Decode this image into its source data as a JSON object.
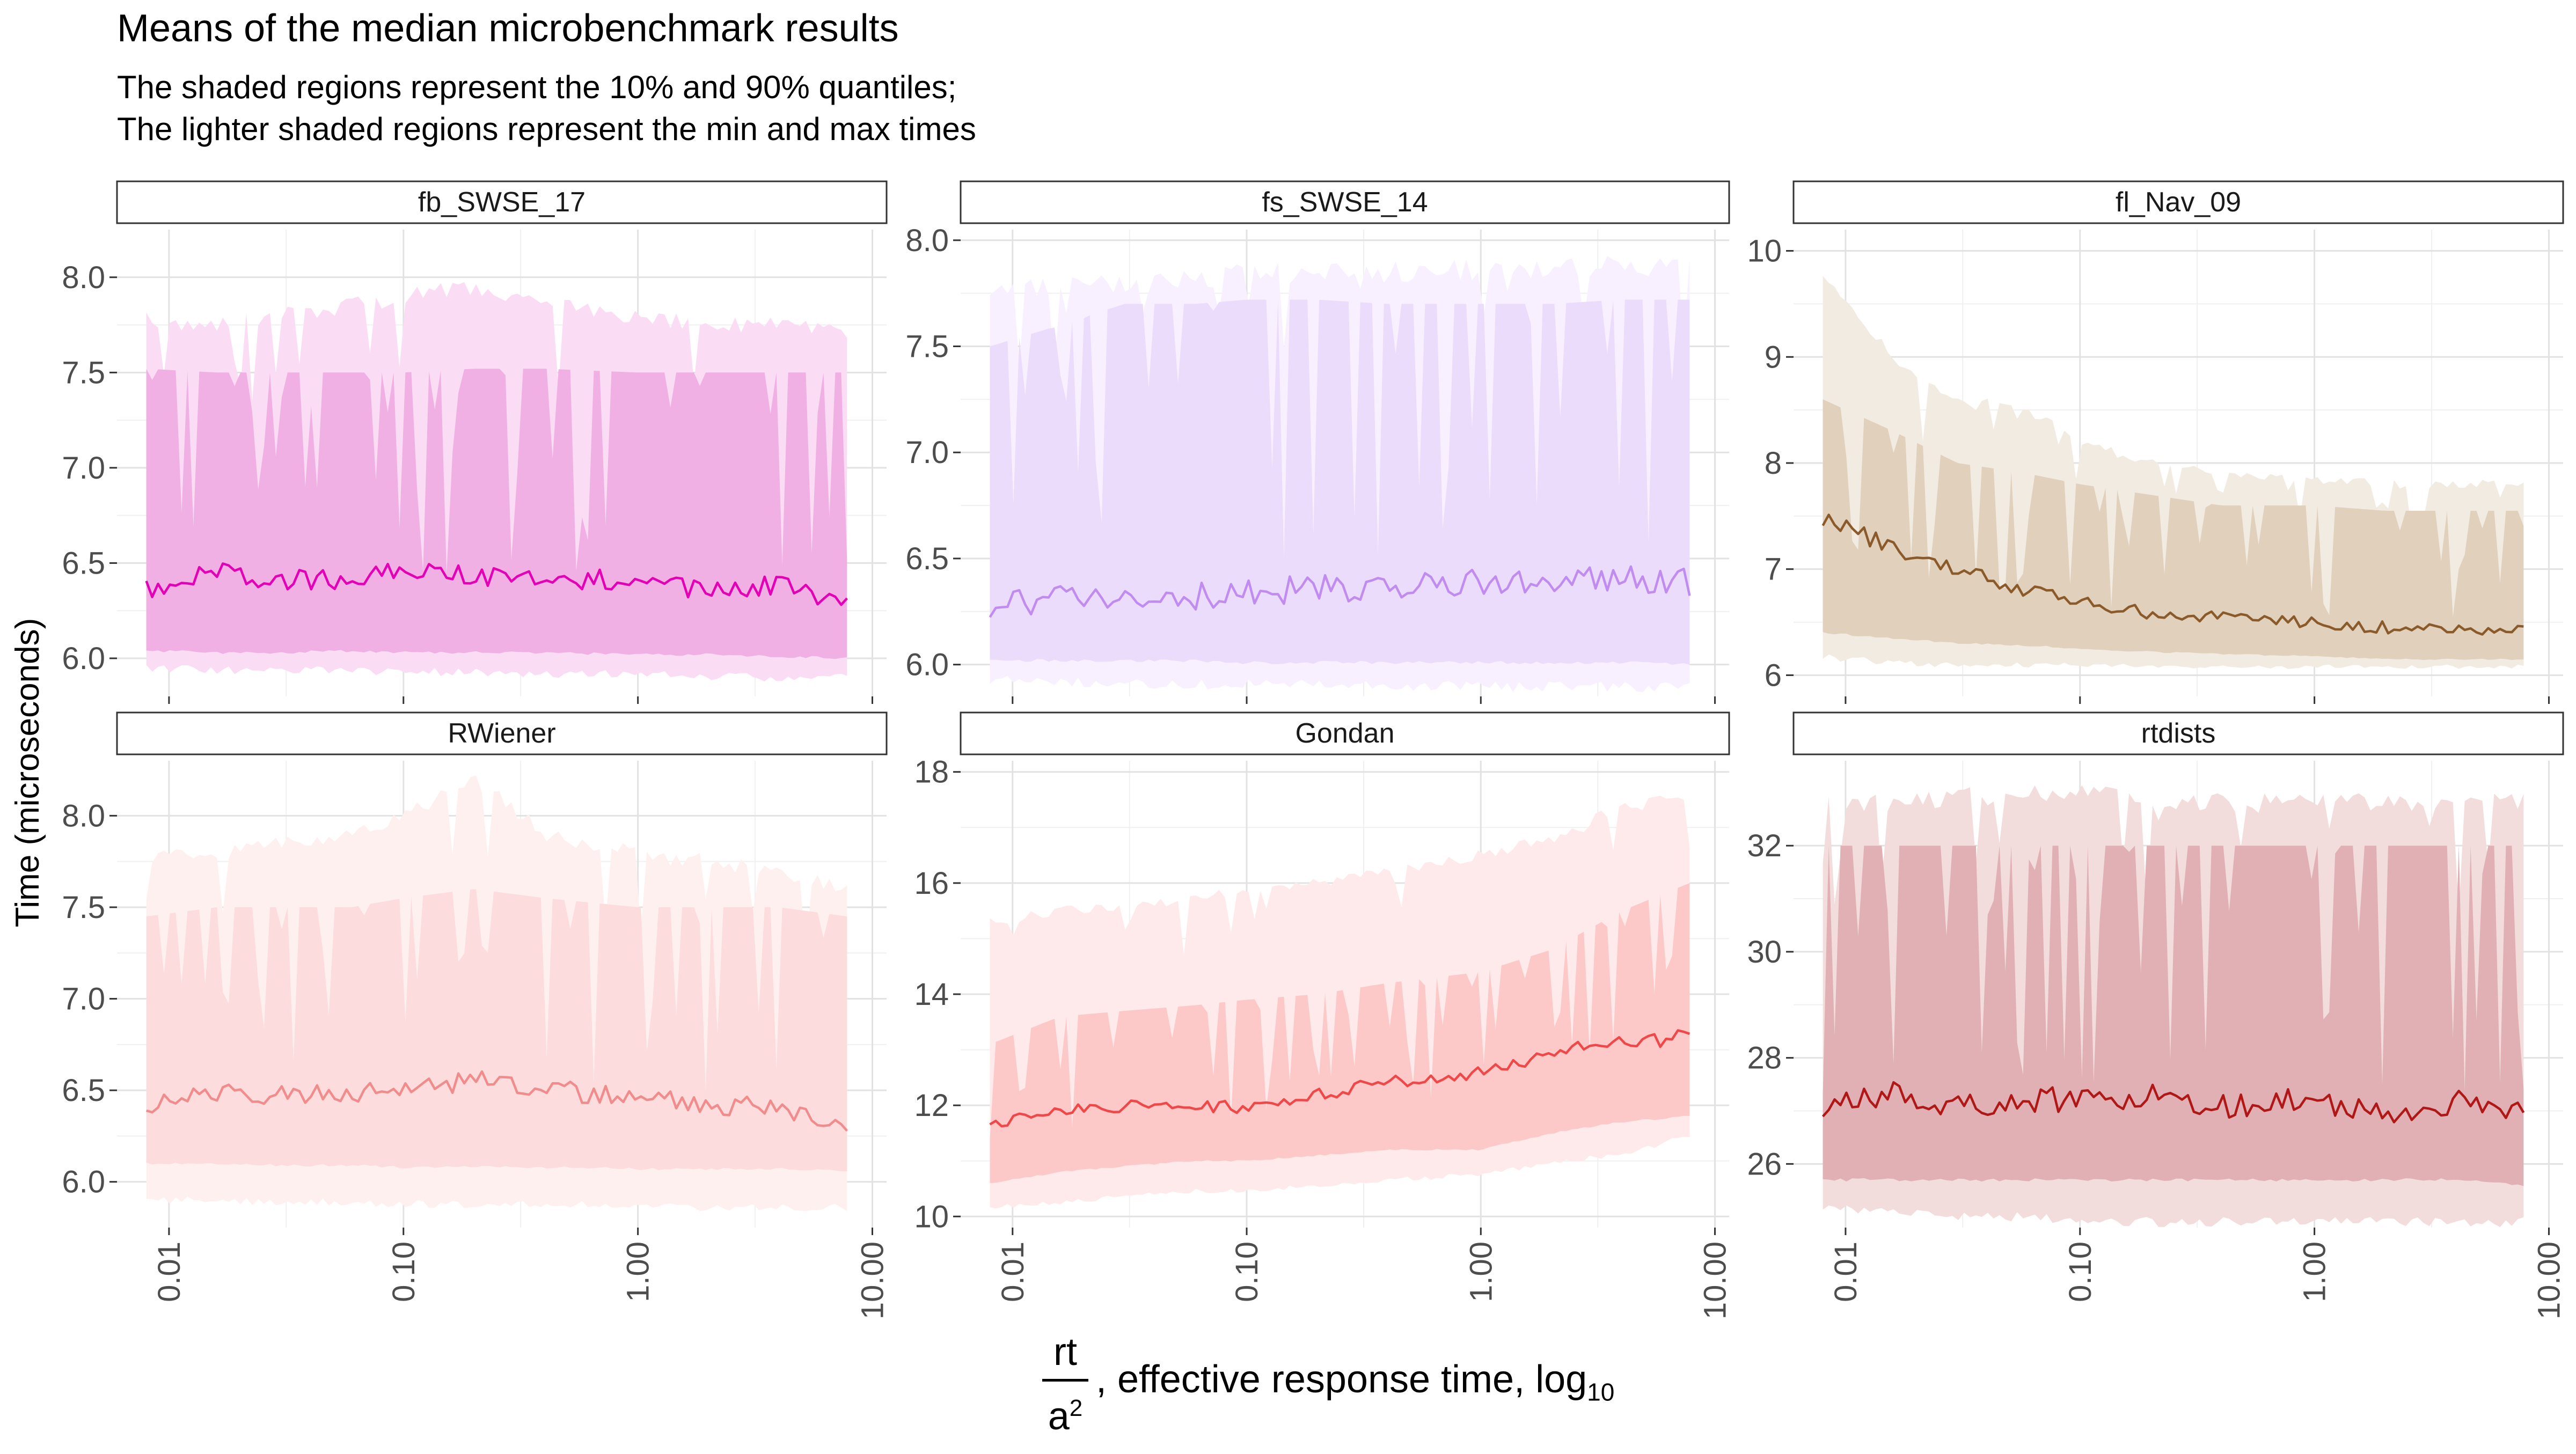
{
  "title": "Means of the median microbenchmark results",
  "subtitle_lines": [
    "The shaded regions represent the 10% and 90% quantiles;",
    "The lighter shaded regions represent the min and max times"
  ],
  "y_axis_label": "Time (microseconds)",
  "x_axis_label": {
    "numerator": "rt",
    "denominator": "a",
    "denominator_exponent": "2",
    "rest": ", effective response time,  log",
    "subscript": "10"
  },
  "chart_data": [
    {
      "type": "area",
      "panel": "fb_SWSE_17",
      "color": "#e400b4",
      "band_color": "#f0b0e4",
      "outer_color": "#fadcf4",
      "x_scale": "log10",
      "x_ticks": [
        "0.01",
        "0.10",
        "1.00",
        "10.00"
      ],
      "y_ticks": [
        "6.0",
        "6.5",
        "7.0",
        "7.5",
        "8.0"
      ],
      "ylim": [
        5.8,
        8.25
      ],
      "x": [
        0.008,
        0.016,
        0.03,
        0.06,
        0.1,
        0.2,
        0.4,
        1.0,
        2.0,
        4.0,
        7.8
      ],
      "mean": [
        6.36,
        6.47,
        6.4,
        6.42,
        6.45,
        6.44,
        6.42,
        6.4,
        6.36,
        6.38,
        6.28
      ],
      "q10": [
        6.04,
        6.03,
        6.03,
        6.04,
        6.03,
        6.03,
        6.03,
        6.02,
        6.02,
        6.01,
        6.0
      ],
      "q90": [
        7.52,
        7.5,
        7.5,
        7.5,
        7.5,
        7.52,
        7.52,
        7.5,
        7.5,
        7.5,
        7.5
      ],
      "min": [
        5.97,
        5.96,
        5.96,
        5.96,
        5.95,
        5.95,
        5.94,
        5.94,
        5.93,
        5.92,
        5.92
      ],
      "max": [
        7.78,
        7.75,
        7.8,
        7.85,
        7.9,
        7.95,
        7.85,
        7.8,
        7.75,
        7.75,
        7.72
      ]
    },
    {
      "type": "area",
      "panel": "fs_SWSE_14",
      "color": "#c08cf0",
      "band_color": "#ecdcfc",
      "outer_color": "#f8f0fe",
      "x_scale": "log10",
      "x_ticks": [
        "0.01",
        "0.10",
        "1.00",
        "10.00"
      ],
      "y_ticks": [
        "6.0",
        "6.5",
        "7.0",
        "7.5",
        "8.0"
      ],
      "ylim": [
        5.85,
        8.05
      ],
      "x": [
        0.008,
        0.016,
        0.03,
        0.06,
        0.1,
        0.2,
        0.4,
        1.0,
        2.0,
        4.0,
        7.8
      ],
      "mean": [
        6.28,
        6.31,
        6.3,
        6.32,
        6.33,
        6.36,
        6.37,
        6.38,
        6.4,
        6.42,
        6.38
      ],
      "q10": [
        6.02,
        6.02,
        6.02,
        6.02,
        6.01,
        6.01,
        6.01,
        6.01,
        6.01,
        6.01,
        6.0
      ],
      "q90": [
        7.5,
        7.6,
        7.7,
        7.7,
        7.72,
        7.72,
        7.7,
        7.7,
        7.7,
        7.72,
        7.72
      ],
      "min": [
        5.95,
        5.94,
        5.94,
        5.93,
        5.93,
        5.93,
        5.93,
        5.92,
        5.92,
        5.92,
        5.92
      ],
      "max": [
        7.78,
        7.78,
        7.8,
        7.82,
        7.84,
        7.85,
        7.85,
        7.86,
        7.87,
        7.88,
        7.88
      ]
    },
    {
      "type": "area",
      "panel": "fl_Nav_09",
      "color": "#8b5a2b",
      "band_color": "#e0d0bc",
      "outer_color": "#f2ebe2",
      "x_scale": "log10",
      "x_ticks": [
        "0.01",
        "0.10",
        "1.00",
        "10.00"
      ],
      "y_ticks": [
        "6",
        "7",
        "8",
        "9",
        "10"
      ],
      "ylim": [
        5.8,
        10.2
      ],
      "x": [
        0.008,
        0.016,
        0.03,
        0.06,
        0.1,
        0.2,
        0.4,
        1.0,
        2.0,
        4.0,
        7.8
      ],
      "mean": [
        7.47,
        7.2,
        7.0,
        6.8,
        6.7,
        6.58,
        6.55,
        6.5,
        6.45,
        6.45,
        6.42
      ],
      "q10": [
        6.4,
        6.35,
        6.3,
        6.28,
        6.25,
        6.22,
        6.2,
        6.18,
        6.15,
        6.15,
        6.15
      ],
      "q90": [
        8.6,
        8.3,
        8.0,
        7.9,
        7.8,
        7.7,
        7.6,
        7.6,
        7.55,
        7.55,
        7.55
      ],
      "min": [
        6.2,
        6.15,
        6.12,
        6.12,
        6.12,
        6.1,
        6.1,
        6.1,
        6.1,
        6.1,
        6.1
      ],
      "max": [
        9.8,
        9.0,
        8.6,
        8.5,
        8.2,
        8.0,
        7.9,
        7.85,
        7.8,
        7.8,
        7.8
      ]
    },
    {
      "type": "area",
      "panel": "RWiener",
      "color": "#f08c8c",
      "band_color": "#fcdcdc",
      "outer_color": "#fff0f0",
      "x_scale": "log10",
      "x_ticks": [
        "0.01",
        "0.10",
        "1.00",
        "10.00"
      ],
      "y_ticks": [
        "6.0",
        "6.5",
        "7.0",
        "7.5",
        "8.0"
      ],
      "ylim": [
        5.75,
        8.3
      ],
      "x": [
        0.008,
        0.016,
        0.03,
        0.06,
        0.1,
        0.2,
        0.4,
        1.0,
        2.0,
        4.0,
        7.8
      ],
      "mean": [
        6.42,
        6.48,
        6.47,
        6.48,
        6.5,
        6.56,
        6.5,
        6.47,
        6.42,
        6.4,
        6.3
      ],
      "q10": [
        6.1,
        6.1,
        6.09,
        6.09,
        6.08,
        6.08,
        6.08,
        6.07,
        6.07,
        6.07,
        6.06
      ],
      "q90": [
        7.45,
        7.5,
        7.5,
        7.5,
        7.55,
        7.6,
        7.55,
        7.5,
        7.5,
        7.5,
        7.45
      ],
      "min": [
        5.92,
        5.92,
        5.91,
        5.91,
        5.9,
        5.9,
        5.9,
        5.89,
        5.88,
        5.88,
        5.88
      ],
      "max": [
        7.78,
        7.78,
        7.85,
        7.9,
        8.0,
        8.2,
        7.9,
        7.8,
        7.75,
        7.7,
        7.6
      ]
    },
    {
      "type": "area",
      "panel": "Gondan",
      "color": "#f04848",
      "band_color": "#fcc8c8",
      "outer_color": "#feeaea",
      "x_scale": "log10",
      "x_ticks": [
        "0.01",
        "0.10",
        "1.00",
        "10.00"
      ],
      "y_ticks": [
        "10",
        "12",
        "14",
        "16",
        "18"
      ],
      "ylim": [
        9.8,
        18.2
      ],
      "x": [
        0.008,
        0.016,
        0.03,
        0.06,
        0.1,
        0.2,
        0.4,
        1.0,
        2.0,
        4.0,
        7.8
      ],
      "mean": [
        11.65,
        11.9,
        12.0,
        12.0,
        11.95,
        12.2,
        12.4,
        12.6,
        12.9,
        13.2,
        13.2
      ],
      "q10": [
        10.6,
        10.8,
        10.9,
        11.0,
        11.0,
        11.1,
        11.2,
        11.2,
        11.5,
        11.7,
        11.8
      ],
      "q90": [
        13.1,
        13.6,
        13.7,
        13.8,
        13.9,
        14.0,
        14.2,
        14.4,
        14.8,
        15.5,
        16.0
      ],
      "min": [
        10.2,
        10.3,
        10.4,
        10.5,
        10.5,
        10.6,
        10.7,
        10.8,
        11.0,
        11.2,
        11.5
      ],
      "max": [
        15.3,
        15.5,
        15.6,
        15.7,
        15.9,
        16.0,
        16.2,
        16.5,
        16.8,
        17.4,
        17.5
      ]
    },
    {
      "type": "area",
      "panel": "rtdists",
      "color": "#b01818",
      "band_color": "#e0b0b4",
      "outer_color": "#f2dcdc",
      "x_scale": "log10",
      "x_ticks": [
        "0.01",
        "0.10",
        "1.00",
        "10.00"
      ],
      "y_ticks": [
        "26",
        "28",
        "30",
        "32"
      ],
      "ylim": [
        24.8,
        33.6
      ],
      "x": [
        0.008,
        0.016,
        0.03,
        0.06,
        0.1,
        0.2,
        0.4,
        1.0,
        2.0,
        4.0,
        7.8
      ],
      "mean": [
        27.05,
        27.4,
        27.1,
        27.2,
        27.2,
        27.3,
        27.1,
        27.2,
        27.0,
        27.2,
        27.0
      ],
      "q10": [
        25.7,
        25.7,
        25.7,
        25.7,
        25.7,
        25.7,
        25.7,
        25.7,
        25.7,
        25.7,
        25.6
      ],
      "q90": [
        32.0,
        32.0,
        32.0,
        32.0,
        32.0,
        32.0,
        32.0,
        32.0,
        32.0,
        32.0,
        32.0
      ],
      "min": [
        25.3,
        25.2,
        25.1,
        25.1,
        25.0,
        25.0,
        25.0,
        25.0,
        25.0,
        25.0,
        25.0
      ],
      "max": [
        32.8,
        32.8,
        32.9,
        33.0,
        33.0,
        32.9,
        32.8,
        32.8,
        32.8,
        32.8,
        32.8
      ]
    }
  ]
}
